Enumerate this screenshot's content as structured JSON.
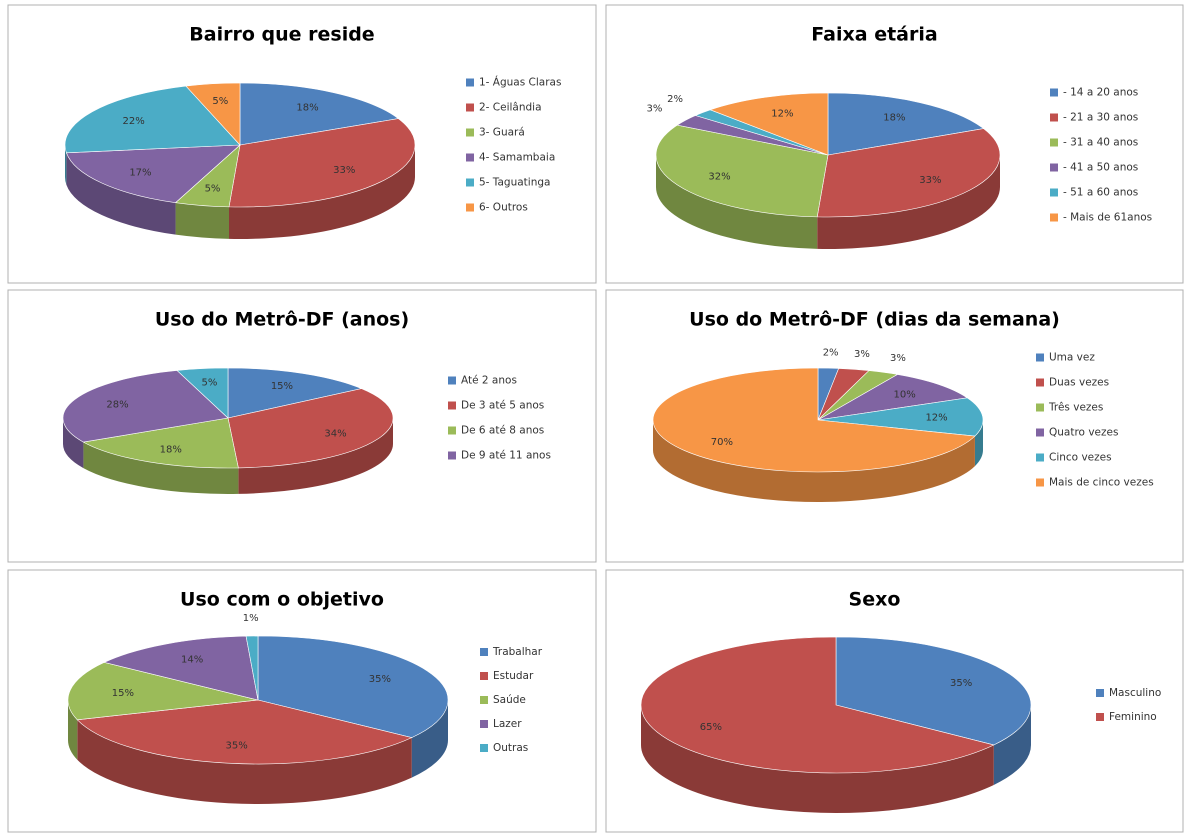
{
  "chart_data": [
    {
      "type": "pie",
      "title": "Bairro que reside",
      "categories": [
        "1- Águas Claras",
        "2- Ceilândia",
        "3- Guará",
        "4- Samambaia",
        "5- Taguatinga",
        "6- Outros"
      ],
      "values": [
        18,
        33,
        5,
        17,
        22,
        5
      ],
      "value_labels": [
        "18%",
        "33%",
        "5%",
        "17%",
        "22%",
        "5%"
      ],
      "colors": [
        "#4f81bd",
        "#c0504d",
        "#9bbb59",
        "#8064a2",
        "#4bacc6",
        "#f79646"
      ]
    },
    {
      "type": "pie",
      "title": "Faixa etária",
      "categories": [
        "- 14 a 20 anos",
        "- 21 a 30 anos",
        "- 31 a 40 anos",
        "- 41 a 50 anos",
        "- 51 a 60 anos",
        "- Mais de 61anos"
      ],
      "values": [
        18,
        33,
        32,
        3,
        2,
        12
      ],
      "value_labels": [
        "18%",
        "33%",
        "32%",
        "3%",
        "2%",
        "12%"
      ],
      "colors": [
        "#4f81bd",
        "#c0504d",
        "#9bbb59",
        "#8064a2",
        "#4bacc6",
        "#f79646"
      ]
    },
    {
      "type": "pie",
      "title": "Uso do Metrô-DF (anos)",
      "categories": [
        "Até 2 anos",
        "De 3 até 5 anos",
        "De 6 até 8 anos",
        "De 9 até 11 anos",
        null
      ],
      "values": [
        15,
        34,
        18,
        28,
        5
      ],
      "value_labels": [
        "15%",
        "34%",
        "18%",
        "28%",
        "5%"
      ],
      "colors": [
        "#4f81bd",
        "#c0504d",
        "#9bbb59",
        "#8064a2",
        "#4bacc6"
      ]
    },
    {
      "type": "pie",
      "title": "Uso do Metrô-DF (dias da semana)",
      "categories": [
        "Uma vez",
        "Duas vezes",
        "Três vezes",
        "Quatro vezes",
        "Cinco vezes",
        "Mais de cinco vezes"
      ],
      "values": [
        2,
        3,
        3,
        10,
        12,
        70
      ],
      "value_labels": [
        "2%",
        "3%",
        "3%",
        "10%",
        "12%",
        "70%"
      ],
      "colors": [
        "#4f81bd",
        "#c0504d",
        "#9bbb59",
        "#8064a2",
        "#4bacc6",
        "#f79646"
      ]
    },
    {
      "type": "pie",
      "title": "Uso com o objetivo",
      "categories": [
        "Trabalhar",
        "Estudar",
        "Saúde",
        "Lazer",
        "Outras"
      ],
      "values": [
        35,
        35,
        15,
        14,
        1
      ],
      "value_labels": [
        "35%",
        "35%",
        "15%",
        "14%",
        "1%"
      ],
      "colors": [
        "#4f81bd",
        "#c0504d",
        "#9bbb59",
        "#8064a2",
        "#4bacc6"
      ]
    },
    {
      "type": "pie",
      "title": "Sexo",
      "categories": [
        "Masculino",
        "Feminino"
      ],
      "values": [
        35,
        65
      ],
      "value_labels": [
        "35%",
        "65%"
      ],
      "colors": [
        "#4f81bd",
        "#c0504d"
      ]
    }
  ]
}
